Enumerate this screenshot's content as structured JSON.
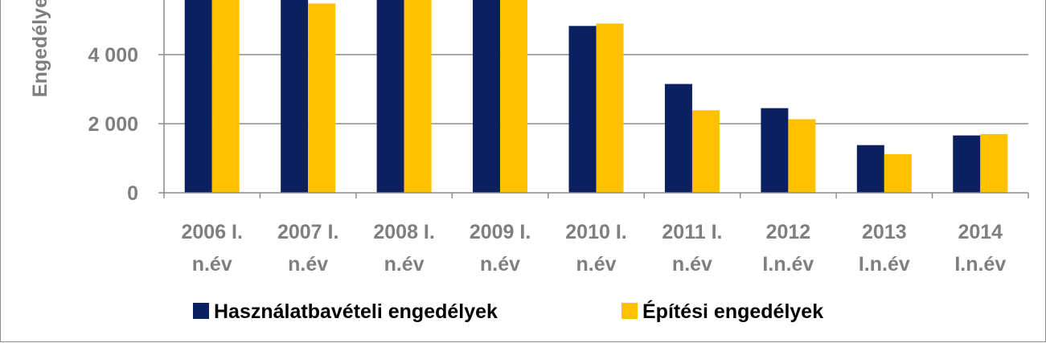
{
  "chart_data": {
    "type": "bar",
    "ylabel": "Engedélye",
    "ylim": [
      0,
      6000
    ],
    "yticks": [
      0,
      2000,
      4000
    ],
    "ytick_labels": [
      "0",
      "2 000",
      "4 000"
    ],
    "grid": true,
    "legend_position": "bottom",
    "categories": [
      [
        "2006 I.",
        "n.év"
      ],
      [
        "2007 I.",
        "n.év"
      ],
      [
        "2008 I.",
        "n.év"
      ],
      [
        "2009 I.",
        "n.év"
      ],
      [
        "2010 I.",
        "n.év"
      ],
      [
        "2011 I.",
        "n.év"
      ],
      [
        "2012",
        "I.n.év"
      ],
      [
        "2013",
        "I.n.év"
      ],
      [
        "2014",
        "I.n.év"
      ]
    ],
    "series": [
      {
        "name": "Használatbavételi engedélyek",
        "color": "#0b2060",
        "values": [
          5800,
          5800,
          5800,
          5800,
          4830,
          3150,
          2450,
          1380,
          1660
        ]
      },
      {
        "name": "Építési engedélyek",
        "color": "#ffc000",
        "values": [
          5800,
          5480,
          5800,
          5800,
          4900,
          2390,
          2130,
          1120,
          1700
        ]
      }
    ]
  }
}
